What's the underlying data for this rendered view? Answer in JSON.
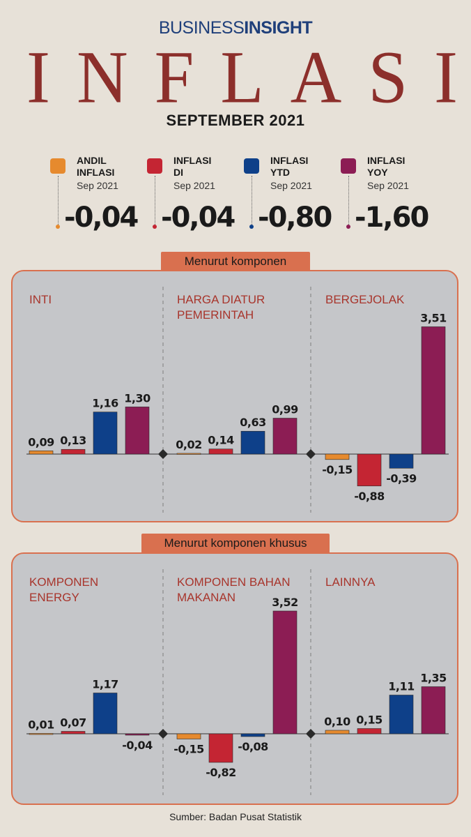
{
  "brand": {
    "part1": "BUSINESS",
    "part2": "INSIGHT"
  },
  "title": "INFLASI",
  "subtitle": "SEPTEMBER 2021",
  "colors": {
    "orange": "#e68a2e",
    "red": "#c42533",
    "blue": "#0e4089",
    "purple": "#8c1d54",
    "panel_border": "#d9704f",
    "title": "#8c2f2b"
  },
  "kpis": [
    {
      "label": "ANDIL\nINFLASI",
      "period": "Sep 2021",
      "value": "-0,04",
      "color": "#e68a2e"
    },
    {
      "label": "INFLASI\nDI",
      "period": "Sep 2021",
      "value": "-0,04",
      "color": "#c42533"
    },
    {
      "label": "INFLASI\nYTD",
      "period": "Sep 2021",
      "value": "-0,80",
      "color": "#0e4089"
    },
    {
      "label": "INFLASI\nYOY",
      "period": "Sep 2021",
      "value": "-1,60",
      "color": "#8c1d54"
    }
  ],
  "section1_title": "Menurut komponen",
  "section2_title": "Menurut komponen khusus",
  "source": "Sumber: Badan Pusat Statistik",
  "chart_data": [
    {
      "type": "bar",
      "title": "Menurut komponen",
      "series_colors": [
        "#e68a2e",
        "#c42533",
        "#0e4089",
        "#8c1d54"
      ],
      "groups": [
        {
          "name": [
            "INTI"
          ],
          "values": [
            0.09,
            0.13,
            1.16,
            1.3
          ],
          "labels": [
            "0,09",
            "0,13",
            "1,16",
            "1,30"
          ]
        },
        {
          "name": [
            "HARGA DIATUR",
            "PEMERINTAH"
          ],
          "values": [
            0.02,
            0.14,
            0.63,
            0.99
          ],
          "labels": [
            "0,02",
            "0,14",
            "0,63",
            "0,99"
          ]
        },
        {
          "name": [
            "BERGEJOLAK"
          ],
          "values": [
            -0.15,
            -0.88,
            -0.39,
            3.51
          ],
          "labels": [
            "-0,15",
            "-0,88",
            "-0,39",
            "3,51"
          ]
        }
      ]
    },
    {
      "type": "bar",
      "title": "Menurut komponen khusus",
      "series_colors": [
        "#e68a2e",
        "#c42533",
        "#0e4089",
        "#8c1d54"
      ],
      "groups": [
        {
          "name": [
            "KOMPONEN",
            "ENERGY"
          ],
          "values": [
            0.01,
            0.07,
            1.17,
            -0.04
          ],
          "labels": [
            "0,01",
            "0,07",
            "1,17",
            "-0,04"
          ]
        },
        {
          "name": [
            "KOMPONEN BAHAN",
            "MAKANAN"
          ],
          "values": [
            -0.15,
            -0.82,
            -0.08,
            3.52
          ],
          "labels": [
            "-0,15",
            "-0,82",
            "-0,08",
            "3,52"
          ]
        },
        {
          "name": [
            "LAINNYA"
          ],
          "values": [
            0.1,
            0.15,
            1.11,
            1.35
          ],
          "labels": [
            "0,10",
            "0,15",
            "1,11",
            "1,35"
          ]
        }
      ]
    }
  ]
}
